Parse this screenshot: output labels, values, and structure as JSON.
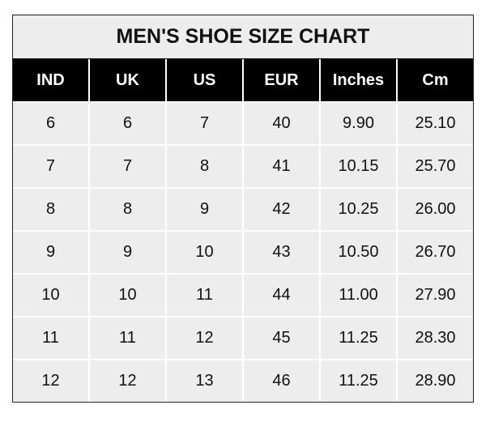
{
  "chart_data": {
    "type": "table",
    "title": "MEN'S SHOE SIZE CHART",
    "columns": [
      "IND",
      "UK",
      "US",
      "EUR",
      "Inches",
      "Cm"
    ],
    "rows": [
      [
        "6",
        "6",
        "7",
        "40",
        "9.90",
        "25.10"
      ],
      [
        "7",
        "7",
        "8",
        "41",
        "10.15",
        "25.70"
      ],
      [
        "8",
        "8",
        "9",
        "42",
        "10.25",
        "26.00"
      ],
      [
        "9",
        "9",
        "10",
        "43",
        "10.50",
        "26.70"
      ],
      [
        "10",
        "10",
        "11",
        "44",
        "11.00",
        "27.90"
      ],
      [
        "11",
        "11",
        "12",
        "45",
        "11.25",
        "28.30"
      ],
      [
        "12",
        "12",
        "13",
        "46",
        "11.25",
        "28.90"
      ]
    ]
  },
  "colors": {
    "header_bg": "#000000",
    "cell_bg": "#ededed",
    "header_text": "#ffffff"
  }
}
